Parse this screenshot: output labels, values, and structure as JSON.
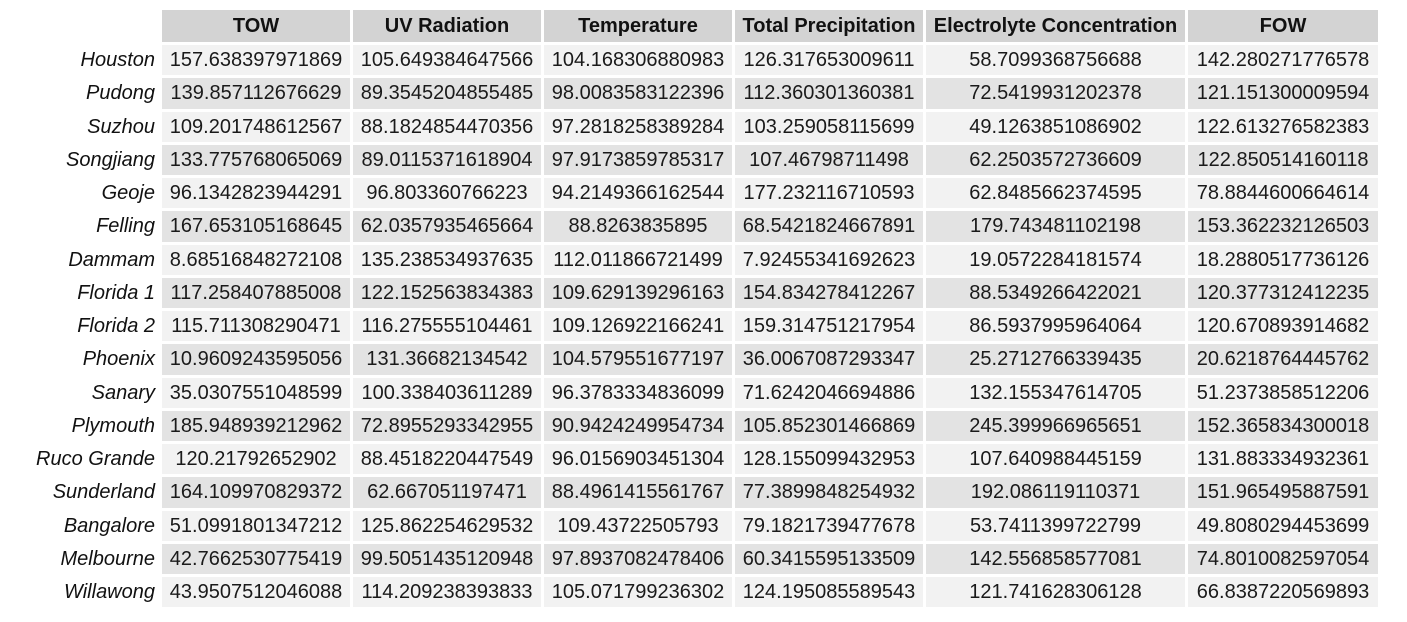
{
  "colors": {
    "header_bg": "#d3d3d3",
    "row_odd_bg": "#f2f2f2",
    "row_even_bg": "#e3e3e3"
  },
  "chart_data": {
    "type": "table",
    "columns": [
      "TOW",
      "UV Radiation",
      "Temperature",
      "Total Precipitation",
      "Electrolyte Concentration",
      "FOW"
    ],
    "rows": [
      {
        "label": "Houston",
        "values": [
          157.638397971869,
          105.649384647566,
          104.168306880983,
          126.317653009611,
          58.7099368756688,
          142.280271776578
        ]
      },
      {
        "label": "Pudong",
        "values": [
          139.857112676629,
          89.3545204855485,
          98.0083583122396,
          112.360301360381,
          72.5419931202378,
          121.151300009594
        ]
      },
      {
        "label": "Suzhou",
        "values": [
          109.201748612567,
          88.1824854470356,
          97.2818258389284,
          103.259058115699,
          49.1263851086902,
          122.613276582383
        ]
      },
      {
        "label": "Songjiang",
        "values": [
          133.775768065069,
          89.0115371618904,
          97.9173859785317,
          107.46798711498,
          62.2503572736609,
          122.850514160118
        ]
      },
      {
        "label": "Geoje",
        "values": [
          96.1342823944291,
          96.803360766223,
          94.2149366162544,
          177.232116710593,
          62.8485662374595,
          78.8844600664614
        ]
      },
      {
        "label": "Felling",
        "values": [
          167.653105168645,
          62.0357935465664,
          88.8263835895,
          68.5421824667891,
          179.743481102198,
          153.362232126503
        ]
      },
      {
        "label": "Dammam",
        "values": [
          8.68516848272108,
          135.238534937635,
          112.011866721499,
          7.92455341692623,
          19.0572284181574,
          18.2880517736126
        ]
      },
      {
        "label": "Florida 1",
        "values": [
          117.258407885008,
          122.152563834383,
          109.629139296163,
          154.834278412267,
          88.5349266422021,
          120.377312412235
        ]
      },
      {
        "label": "Florida 2",
        "values": [
          115.711308290471,
          116.275555104461,
          109.126922166241,
          159.314751217954,
          86.5937995964064,
          120.670893914682
        ]
      },
      {
        "label": "Phoenix",
        "values": [
          10.9609243595056,
          131.36682134542,
          104.579551677197,
          36.0067087293347,
          25.2712766339435,
          20.6218764445762
        ]
      },
      {
        "label": "Sanary",
        "values": [
          35.0307551048599,
          100.338403611289,
          96.3783334836099,
          71.6242046694886,
          132.155347614705,
          51.2373858512206
        ]
      },
      {
        "label": "Plymouth",
        "values": [
          185.948939212962,
          72.8955293342955,
          90.9424249954734,
          105.852301466869,
          245.399966965651,
          152.365834300018
        ]
      },
      {
        "label": "Ruco Grande",
        "values": [
          120.21792652902,
          88.4518220447549,
          96.0156903451304,
          128.155099432953,
          107.640988445159,
          131.883334932361
        ]
      },
      {
        "label": "Sunderland",
        "values": [
          164.109970829372,
          62.667051197471,
          88.4961415561767,
          77.3899848254932,
          192.086119110371,
          151.965495887591
        ]
      },
      {
        "label": "Bangalore",
        "values": [
          51.0991801347212,
          125.862254629532,
          109.43722505793,
          79.1821739477678,
          53.7411399722799,
          49.8080294453699
        ]
      },
      {
        "label": "Melbourne",
        "values": [
          42.7662530775419,
          99.5051435120948,
          97.8937082478406,
          60.3415595133509,
          142.556858577081,
          74.8010082597054
        ]
      },
      {
        "label": "Willawong",
        "values": [
          43.9507512046088,
          114.209238393833,
          105.071799236302,
          124.195085589543,
          121.741628306128,
          66.8387220569893
        ]
      }
    ]
  }
}
